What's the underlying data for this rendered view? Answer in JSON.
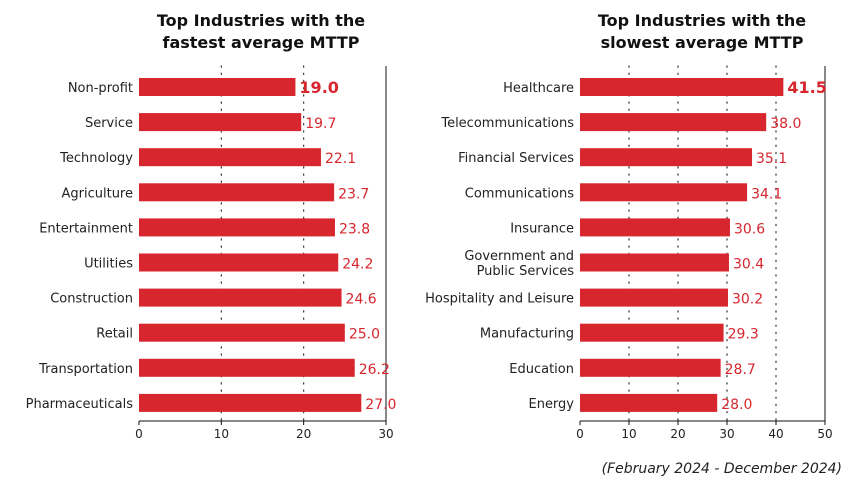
{
  "chart_data": [
    {
      "type": "bar",
      "orientation": "horizontal",
      "title": "Top Industries with the fastest average MTTP",
      "title_lines": [
        "Top Industries with the",
        "fastest average MTTP"
      ],
      "categories": [
        "Non-profit",
        "Service",
        "Technology",
        "Agriculture",
        "Entertainment",
        "Utilities",
        "Construction",
        "Retail",
        "Transportation",
        "Pharmaceuticals"
      ],
      "values": [
        19.0,
        19.7,
        22.1,
        23.7,
        23.8,
        24.2,
        24.6,
        25.0,
        26.2,
        27.0
      ],
      "value_labels": [
        "19.0",
        "19.7",
        "22.1",
        "23.7",
        "23.8",
        "24.2",
        "24.6",
        "25.0",
        "26.2",
        "27.0"
      ],
      "xlim": [
        0,
        30
      ],
      "xticks": [
        0,
        10,
        20,
        30
      ],
      "grid": true,
      "bar_color": "#d7262e"
    },
    {
      "type": "bar",
      "orientation": "horizontal",
      "title": "Top Industries with the slowest average MTTP",
      "title_lines": [
        "Top Industries with the",
        "slowest average MTTP"
      ],
      "categories": [
        "Healthcare",
        "Telecommunications",
        "Financial Services",
        "Communications",
        "Insurance",
        "Government and Public Services",
        "Hospitality and Leisure",
        "Manufacturing",
        "Education",
        "Energy"
      ],
      "category_lines": [
        [
          "Healthcare"
        ],
        [
          "Telecommunications"
        ],
        [
          "Financial Services"
        ],
        [
          "Communications"
        ],
        [
          "Insurance"
        ],
        [
          "Government and",
          "Public Services"
        ],
        [
          "Hospitality and Leisure"
        ],
        [
          "Manufacturing"
        ],
        [
          "Education"
        ],
        [
          "Energy"
        ]
      ],
      "values": [
        41.5,
        38.0,
        35.1,
        34.1,
        30.6,
        30.4,
        30.2,
        29.3,
        28.7,
        28.0
      ],
      "value_labels": [
        "41.5",
        "38.0",
        "35.1",
        "34.1",
        "30.6",
        "30.4",
        "30.2",
        "29.3",
        "28.7",
        "28.0"
      ],
      "xlim": [
        0,
        50
      ],
      "xticks": [
        0,
        10,
        20,
        30,
        40,
        50
      ],
      "grid": true,
      "bar_color": "#d7262e"
    }
  ],
  "footnote": "(February 2024 - December 2024)"
}
